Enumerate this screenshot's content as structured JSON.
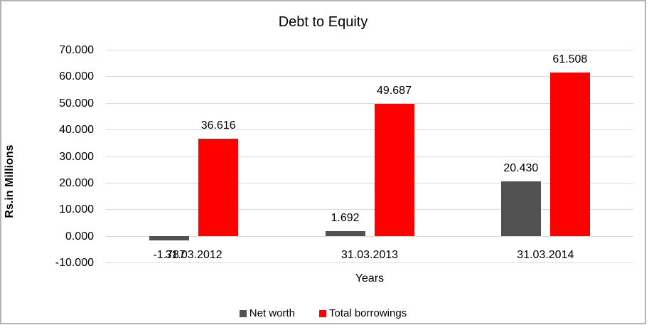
{
  "chart_data": {
    "type": "bar",
    "title": "Debt to Equity",
    "xlabel": "Years",
    "ylabel": "Rs.in Millions",
    "categories": [
      "31.03.2012",
      "31.03.2013",
      "31.03.2014"
    ],
    "series": [
      {
        "name": "Net worth",
        "color": "#515151",
        "values": [
          -1.787,
          1.692,
          20.43
        ],
        "labels": [
          "-1.787",
          "1.692",
          "20.430"
        ]
      },
      {
        "name": "Total borrowings",
        "color": "#ff0000",
        "values": [
          36.616,
          49.687,
          61.508
        ],
        "labels": [
          "36.616",
          "49.687",
          "61.508"
        ]
      }
    ],
    "ylim": [
      -10,
      70
    ],
    "ytick_step": 10,
    "ytick_labels": [
      "70.000",
      "60.000",
      "50.000",
      "40.000",
      "30.000",
      "20.000",
      "10.000",
      "0.000",
      "-10.000"
    ],
    "grid": true,
    "legend_position": "bottom"
  },
  "colors": {
    "gridline": "#d9d9d9",
    "text": "#000000",
    "background": "#ffffff",
    "frame_border": "#b3b3b3",
    "net_worth": "#515151",
    "total_borrowings": "#ff0000"
  }
}
